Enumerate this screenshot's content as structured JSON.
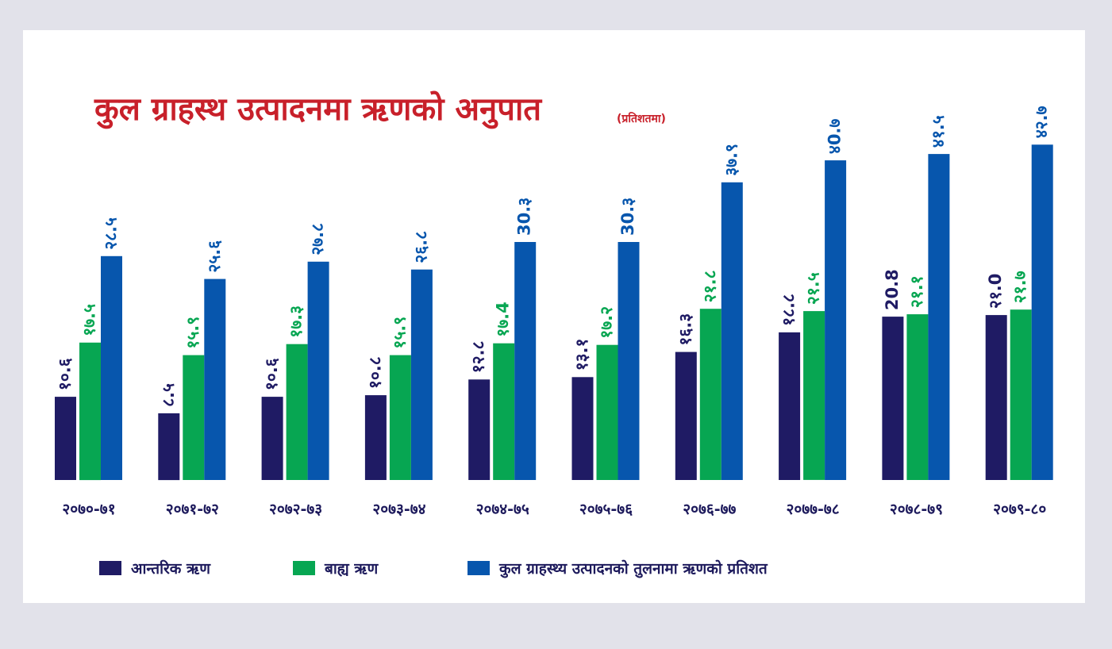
{
  "chart_data": {
    "type": "bar",
    "title": "कुल ग्राहस्थ उत्पादनमा ऋणको अनुपात",
    "subtitle": "(प्रतिशतमा)",
    "categories": [
      "२०७०-७१",
      "२०७१-७२",
      "२०७२-७३",
      "२०७३-७४",
      "२०७४-७५",
      "२०७५-७६",
      "२०७६-७७",
      "२०७७-७८",
      "२०७८-७९",
      "२०७९-८०"
    ],
    "series": [
      {
        "name": "आन्तरिक ऋण",
        "color": "#1f1b64",
        "values": [
          10.6,
          8.5,
          10.6,
          10.8,
          12.8,
          13.1,
          16.3,
          18.8,
          20.8,
          21.0
        ],
        "labels": [
          "१०.६",
          "८.५",
          "१०.६",
          "१०.८",
          "१२.८",
          "१३.१",
          "१६.३",
          "१८.८",
          "20.8",
          "२१.0"
        ]
      },
      {
        "name": "बाह्य ऋण",
        "color": "#07a652",
        "values": [
          17.5,
          15.9,
          17.3,
          15.9,
          17.4,
          17.2,
          21.8,
          21.5,
          21.1,
          21.7
        ],
        "labels": [
          "१७.५",
          "१५.९",
          "१७.३",
          "१५.९",
          "१७.4",
          "१७.२",
          "२१.८",
          "२१.५",
          "२१.१",
          "२१.७"
        ]
      },
      {
        "name": "कुल ग्राहस्थ्य उत्पादनको तुलनामा ऋणको प्रतिशत",
        "color": "#0756ad",
        "values": [
          28.5,
          25.6,
          27.8,
          26.8,
          30.3,
          30.3,
          37.9,
          40.7,
          41.5,
          42.7
        ],
        "labels": [
          "२८.५",
          "२५.६",
          "२७.८",
          "२६.८",
          "30.३",
          "30.३",
          "३७.९",
          "४0.७",
          "४१.५",
          "४२.७"
        ]
      }
    ],
    "ylim": [
      0,
      45
    ],
    "xlabel": "",
    "ylabel": "",
    "legend": "bottom-left",
    "grid": false
  }
}
